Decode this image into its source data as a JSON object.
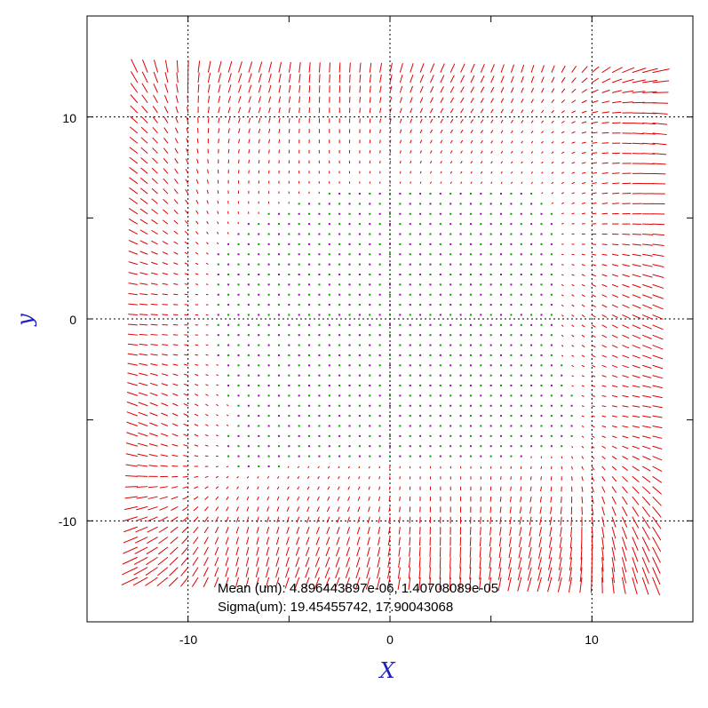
{
  "chart_data": {
    "type": "vector-field",
    "xlabel": "X",
    "ylabel": "y",
    "xlim": [
      -15,
      15
    ],
    "ylim": [
      -15,
      15
    ],
    "xticks": [
      -10,
      0,
      10
    ],
    "yticks": [
      -10,
      0,
      10
    ],
    "x_tick_labels": [
      "-10",
      "0",
      "10"
    ],
    "y_tick_labels": [
      "-10",
      "0",
      "10"
    ],
    "minor_tick_step": 5,
    "grid": true,
    "grid_style": "dotted",
    "vector_grid": {
      "x_range": [
        -12.5,
        13.0
      ],
      "y_range": [
        -12.8,
        12.5
      ],
      "step": 0.5
    },
    "colors": {
      "vectors": "#e00000",
      "markers_green": "#00a000",
      "markers_purple": "#a000c0",
      "axis_titles": "#1f1fbf",
      "frame": "#000000"
    },
    "annotations": {
      "mean": "Mean (um): 4.896443897e-06, 1.40708089e-05",
      "sigma": "Sigma(um): 19.45455742, 17.90043068"
    }
  }
}
